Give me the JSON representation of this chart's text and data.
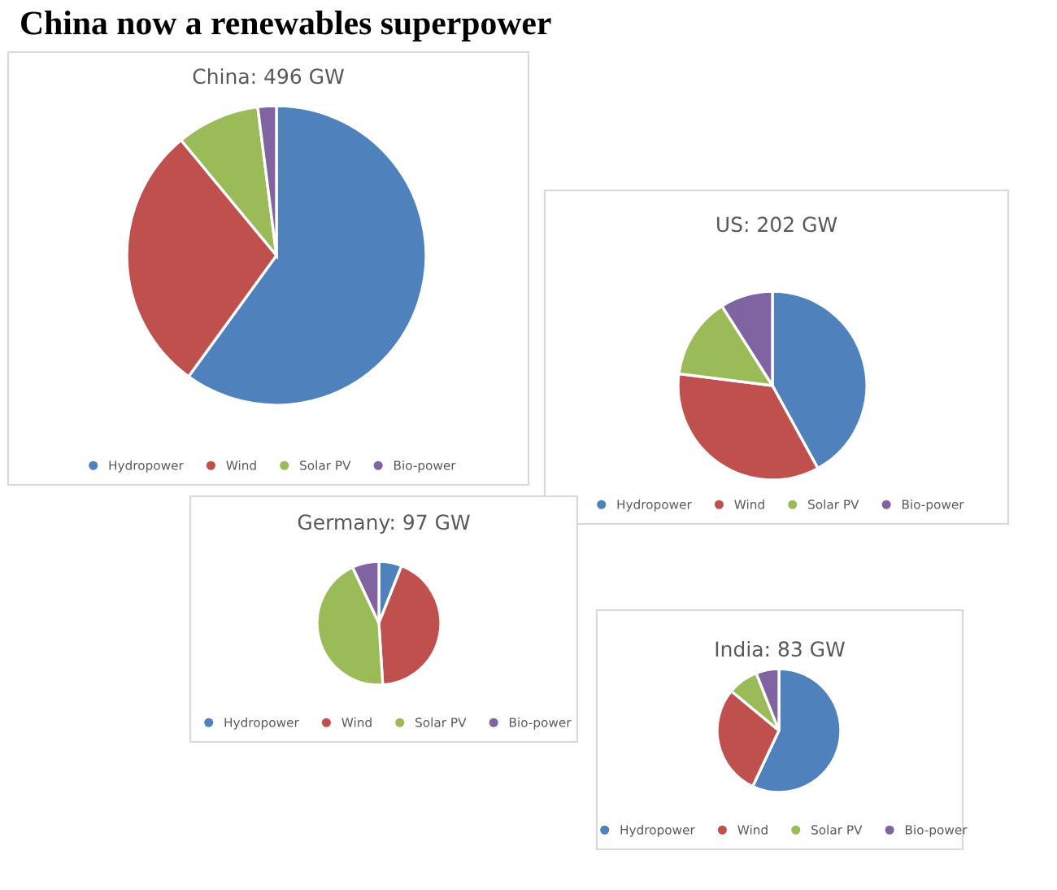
{
  "chart_data": [
    {
      "type": "pie",
      "title": "China: 496 GW",
      "annotations": [
        "China now a renewables superpower"
      ],
      "categories": [
        "Hydropower",
        "Wind",
        "Solar PV",
        "Bio-power"
      ],
      "values": [
        60,
        29,
        9,
        2
      ],
      "colors": [
        "#4f81bd",
        "#c0504d",
        "#9bbb59",
        "#8064a2"
      ],
      "legend": "bottom"
    },
    {
      "type": "pie",
      "title": "US: 202 GW",
      "categories": [
        "Hydropower",
        "Wind",
        "Solar PV",
        "Bio-power"
      ],
      "values": [
        42,
        35,
        14,
        9
      ],
      "colors": [
        "#4f81bd",
        "#c0504d",
        "#9bbb59",
        "#8064a2"
      ],
      "legend": "bottom"
    },
    {
      "type": "pie",
      "title": "Germany: 97 GW",
      "categories": [
        "Hydropower",
        "Wind",
        "Solar PV",
        "Bio-power"
      ],
      "values": [
        6,
        43,
        44,
        7
      ],
      "colors": [
        "#4f81bd",
        "#c0504d",
        "#9bbb59",
        "#8064a2"
      ],
      "legend": "bottom"
    },
    {
      "type": "pie",
      "title": "India: 83 GW",
      "categories": [
        "Hydropower",
        "Wind",
        "Solar PV",
        "Bio-power"
      ],
      "values": [
        57,
        29,
        8,
        6
      ],
      "colors": [
        "#4f81bd",
        "#c0504d",
        "#9bbb59",
        "#8064a2"
      ],
      "legend": "bottom"
    }
  ]
}
